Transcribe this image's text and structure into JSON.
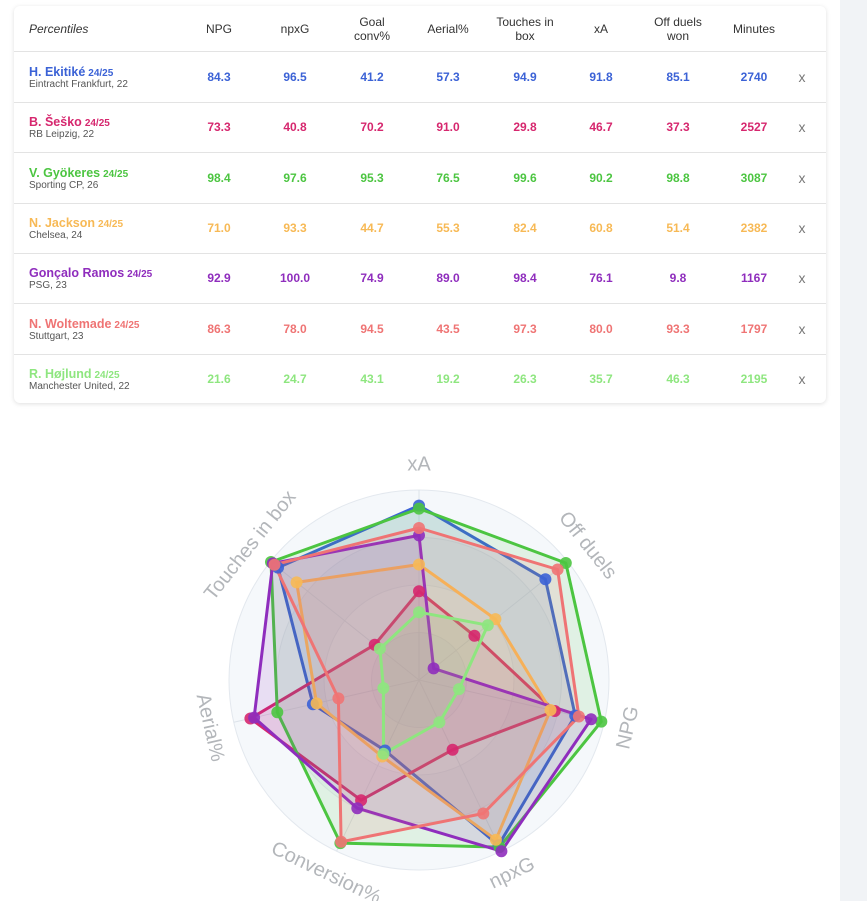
{
  "table": {
    "header": {
      "first": "Percentiles",
      "columns": [
        "NPG",
        "npxG",
        "Goal\nconv%",
        "Aerial%",
        "Touches in\nbox",
        "xA",
        "Off duels\nwon",
        "Minutes"
      ]
    },
    "remove_label": "x",
    "rows": [
      {
        "name": "H. Ekitiké",
        "season": "24/25",
        "club": "Eintracht Frankfurt, 22",
        "color": "#3b62d6",
        "values": [
          "84.3",
          "96.5",
          "41.2",
          "57.3",
          "94.9",
          "91.8",
          "85.1",
          "2740"
        ]
      },
      {
        "name": "B. Šeško",
        "season": "24/25",
        "club": "RB Leipzig, 22",
        "color": "#d6276e",
        "values": [
          "73.3",
          "40.8",
          "70.2",
          "91.0",
          "29.8",
          "46.7",
          "37.3",
          "2527"
        ]
      },
      {
        "name": "V. Gyökeres",
        "season": "24/25",
        "club": "Sporting CP, 26",
        "color": "#4cc541",
        "values": [
          "98.4",
          "97.6",
          "95.3",
          "76.5",
          "99.6",
          "90.2",
          "98.8",
          "3087"
        ]
      },
      {
        "name": "N. Jackson",
        "season": "24/25",
        "club": "Chelsea, 24",
        "color": "#f7b955",
        "values": [
          "71.0",
          "93.3",
          "44.7",
          "55.3",
          "82.4",
          "60.8",
          "51.4",
          "2382"
        ]
      },
      {
        "name": "Gonçalo Ramos",
        "season": "24/25",
        "club": "PSG, 23",
        "color": "#8f2dbd",
        "values": [
          "92.9",
          "100.0",
          "74.9",
          "89.0",
          "98.4",
          "76.1",
          "9.8",
          "1167"
        ]
      },
      {
        "name": "N. Woltemade",
        "season": "24/25",
        "club": "Stuttgart, 23",
        "color": "#ef7474",
        "values": [
          "86.3",
          "78.0",
          "94.5",
          "43.5",
          "97.3",
          "80.0",
          "93.3",
          "1797"
        ]
      },
      {
        "name": "R. Højlund",
        "season": "24/25",
        "club": "Manchester United, 22",
        "color": "#8ee67f",
        "values": [
          "21.6",
          "24.7",
          "43.1",
          "19.2",
          "26.3",
          "35.7",
          "46.3",
          "2195"
        ]
      }
    ]
  },
  "chart_data": {
    "type": "radar",
    "axes": [
      "xA",
      "Off duels",
      "NPG",
      "npxG",
      "Conversion%",
      "Aerial%",
      "Touches in box"
    ],
    "range": [
      0,
      100
    ],
    "series": [
      {
        "name": "H. Ekitiké",
        "color": "#3b62d6",
        "values": [
          91.8,
          85.1,
          84.3,
          96.5,
          41.2,
          57.3,
          94.9
        ]
      },
      {
        "name": "B. Šeško",
        "color": "#d6276e",
        "values": [
          46.7,
          37.3,
          73.3,
          40.8,
          70.2,
          91.0,
          29.8
        ]
      },
      {
        "name": "V. Gyökeres",
        "color": "#4cc541",
        "values": [
          90.2,
          98.8,
          98.4,
          97.6,
          95.3,
          76.5,
          99.6
        ]
      },
      {
        "name": "N. Jackson",
        "color": "#f7b955",
        "values": [
          60.8,
          51.4,
          71.0,
          93.3,
          44.7,
          55.3,
          82.4
        ]
      },
      {
        "name": "Gonçalo Ramos",
        "color": "#8f2dbd",
        "values": [
          76.1,
          9.8,
          92.9,
          100.0,
          74.9,
          89.0,
          98.4
        ]
      },
      {
        "name": "N. Woltemade",
        "color": "#ef7474",
        "values": [
          80.0,
          93.3,
          86.3,
          78.0,
          94.5,
          43.5,
          97.3
        ]
      },
      {
        "name": "R. Højlund",
        "color": "#8ee67f",
        "values": [
          35.7,
          46.3,
          21.6,
          24.7,
          43.1,
          19.2,
          26.3
        ]
      }
    ]
  }
}
